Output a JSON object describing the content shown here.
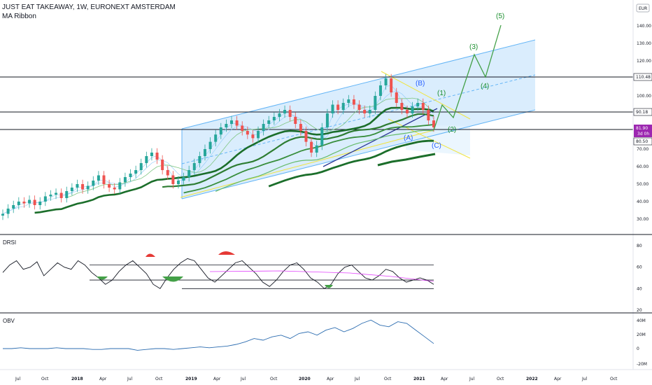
{
  "header": {
    "symbol_line": "JUST EAT TAKEAWAY, 1W, EURONEXT AMSTERDAM",
    "indicator_line": "MA Ribbon",
    "currency": "EUR"
  },
  "chart_data": [
    {
      "type": "candlestick",
      "title": "JUST EAT TAKEAWAY, 1W, EURONEXT AMSTERDAM",
      "xlabel": "",
      "ylabel": "",
      "y_ticks": [
        30,
        40,
        50,
        60,
        70,
        80,
        90,
        100,
        110,
        120,
        130,
        140
      ],
      "ylim": [
        25,
        150
      ],
      "x_ticks": [
        "Jul",
        "Oct",
        "2018",
        "Apr",
        "Jul",
        "Oct",
        "2019",
        "Apr",
        "Jul",
        "Oct",
        "2020",
        "Apr",
        "Jul",
        "Oct",
        "2021",
        "Apr",
        "Jul",
        "Oct",
        "2022",
        "Apr",
        "Jul",
        "Oct"
      ],
      "x_bold_ticks": [
        "2018",
        "2019",
        "2020",
        "2021",
        "2022"
      ],
      "price_labels": [
        {
          "value": "110.48",
          "color": "#131722"
        },
        {
          "value": "90.18",
          "color": "#131722"
        },
        {
          "value": "81.90",
          "color": "#9c27b0"
        },
        {
          "value": "3d 0h",
          "color": "#9c27b0"
        },
        {
          "value": "80.50",
          "color": "#131722"
        }
      ],
      "horizontal_levels": [
        110.48,
        90.18,
        80.5
      ],
      "close_series": [
        33,
        36,
        38,
        40,
        39,
        41,
        38,
        40,
        43,
        44,
        45,
        42,
        46,
        48,
        50,
        47,
        49,
        52,
        55,
        50,
        48,
        47,
        51,
        54,
        56,
        58,
        62,
        66,
        68,
        64,
        58,
        55,
        50,
        52,
        54,
        58,
        62,
        66,
        70,
        74,
        78,
        82,
        84,
        86,
        83,
        80,
        78,
        76,
        80,
        84,
        86,
        88,
        90,
        92,
        88,
        84,
        80,
        74,
        68,
        72,
        82,
        90,
        95,
        92,
        96,
        98,
        95,
        92,
        90,
        92,
        100,
        106,
        110,
        102,
        96,
        92,
        90,
        94,
        96,
        92,
        86,
        82
      ],
      "wave_labels": [
        {
          "text": "(5)",
          "color": "#1b8f2e"
        },
        {
          "text": "(3)",
          "color": "#1b8f2e"
        },
        {
          "text": "(4)",
          "color": "#1b8f2e"
        },
        {
          "text": "(1)",
          "color": "#1b8f2e"
        },
        {
          "text": "(2)",
          "color": "#1b8f2e"
        },
        {
          "text": "(B)",
          "color": "#2962ff"
        },
        {
          "text": "(A)",
          "color": "#2962ff"
        },
        {
          "text": "(C)",
          "color": "#2962ff"
        }
      ],
      "colors": {
        "up": "#26a69a",
        "down": "#ef5350",
        "channel": "#90caf9",
        "ma_dark": "#1b6e2a",
        "ma_light": "#4caf50"
      }
    },
    {
      "type": "line",
      "title": "DRSI",
      "y_ticks": [
        20,
        40,
        60,
        80
      ],
      "ylim": [
        20,
        80
      ],
      "levels": [
        62,
        48,
        40
      ],
      "colors": {
        "line": "#131722",
        "overbought": "#e53935",
        "oversold": "#43a047",
        "signal": "#e040fb"
      }
    },
    {
      "type": "line",
      "title": "OBV",
      "y_ticks": [
        "40M",
        "20M",
        "0",
        "-20M"
      ],
      "colors": {
        "line": "#2b6cb0"
      }
    }
  ]
}
